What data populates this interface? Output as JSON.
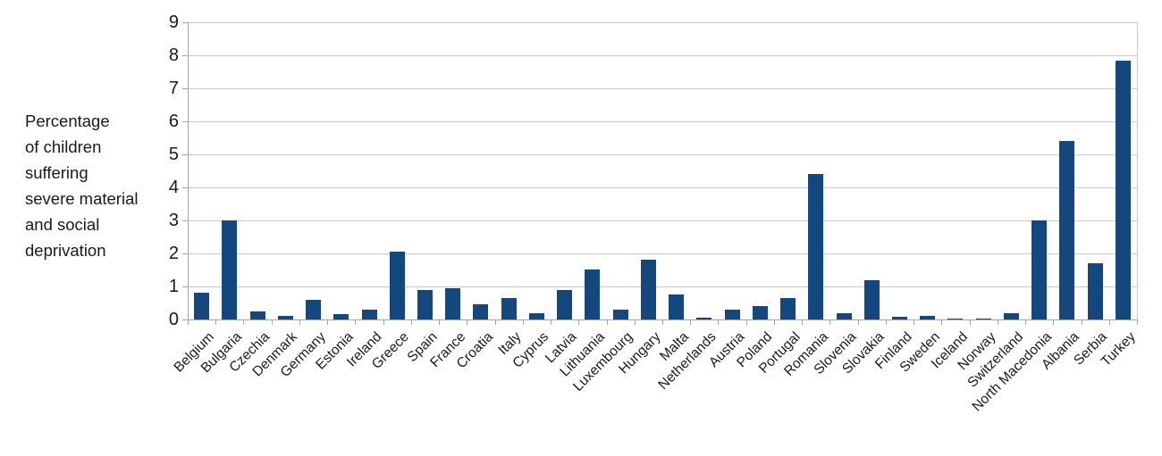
{
  "chart_data": {
    "type": "bar",
    "title": "",
    "ylabel_lines": [
      "Percentage",
      "of children",
      "suffering",
      "severe material",
      "and social",
      "deprivation"
    ],
    "categories": [
      "Belgium",
      "Bulgaria",
      "Czechia",
      "Denmark",
      "Germany",
      "Estonia",
      "Ireland",
      "Greece",
      "Spain",
      "France",
      "Croatia",
      "Italy",
      "Cyprus",
      "Latvia",
      "Lithuania",
      "Luxembourg",
      "Hungary",
      "Malta",
      "Netherlands",
      "Austria",
      "Poland",
      "Portugal",
      "Romania",
      "Slovenia",
      "Slovakia",
      "Finland",
      "Sweden",
      "Iceland",
      "Norway",
      "Switzerland",
      "North Macedonia",
      "Albania",
      "Serbia",
      "Turkey"
    ],
    "values": [
      0.8,
      3.0,
      0.25,
      0.1,
      0.6,
      0.15,
      0.3,
      2.05,
      0.9,
      0.95,
      0.45,
      0.65,
      0.2,
      0.9,
      1.5,
      0.3,
      1.8,
      0.75,
      0.05,
      0.3,
      0.4,
      0.65,
      4.4,
      0.2,
      1.2,
      0.08,
      0.1,
      0.03,
      0.03,
      0.2,
      3.0,
      5.4,
      1.7,
      7.85
    ],
    "yticks": [
      "0",
      "1",
      "2",
      "3",
      "4",
      "5",
      "6",
      "7",
      "8",
      "9"
    ],
    "ylim": [
      0,
      9
    ],
    "grid": true,
    "legend": "none",
    "colors": {
      "bar": "#14477E",
      "grid": "#c9c9c9",
      "axis": "#a6a6a6",
      "text": "#1a1a1a"
    }
  }
}
